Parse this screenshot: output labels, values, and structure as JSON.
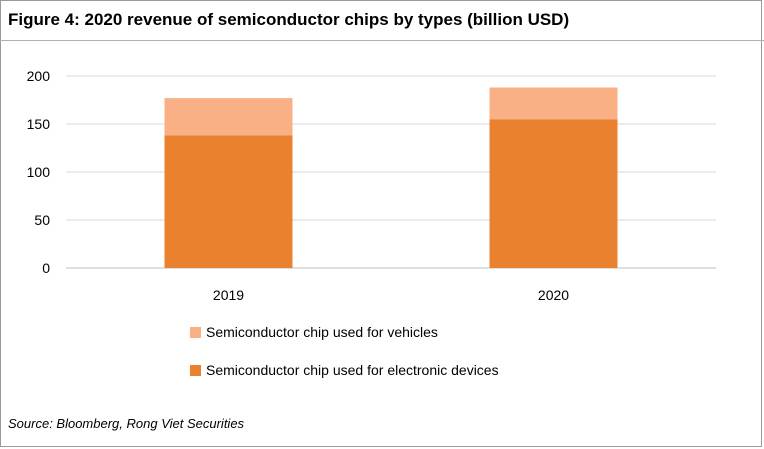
{
  "title": "Figure 4: 2020 revenue of semiconductor chips by types (billion USD)",
  "source": "Source: Bloomberg, Rong Viet Securities",
  "colors": {
    "vehicles": "#F9B084",
    "electronics": "#E9812E",
    "grid": "#d9d9d9"
  },
  "chart_data": {
    "type": "bar",
    "stacked": true,
    "categories": [
      "2019",
      "2020"
    ],
    "series": [
      {
        "name": "Semiconductor chip used for electronic devices",
        "values": [
          138,
          155
        ],
        "color": "#E9812E"
      },
      {
        "name": "Semiconductor chip used for vehicles",
        "values": [
          39,
          33
        ],
        "color": "#F9B084"
      }
    ],
    "ylim": [
      0,
      200
    ],
    "yticks": [
      "0",
      "50",
      "100",
      "150",
      "200"
    ],
    "grid": true,
    "legend_position": "bottom",
    "legend": [
      {
        "label": "Semiconductor chip used for vehicles",
        "color": "#F9B084"
      },
      {
        "label": "Semiconductor chip used for electronic devices",
        "color": "#E9812E"
      }
    ]
  }
}
